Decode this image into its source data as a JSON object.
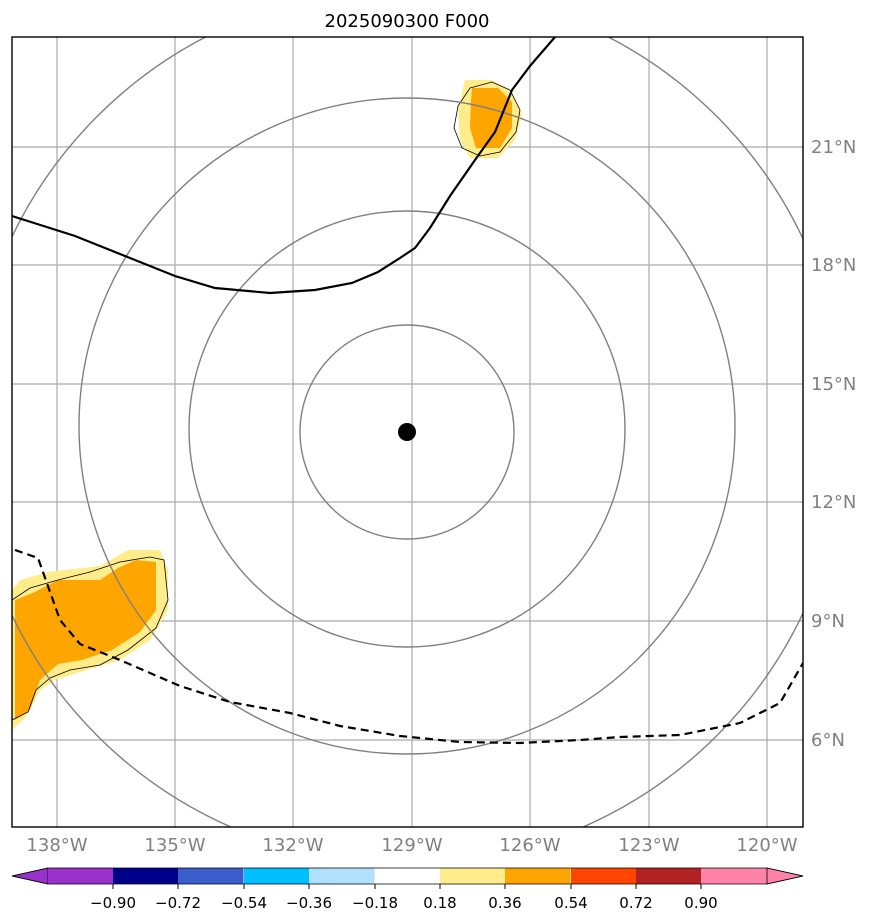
{
  "title": "2025090300 F000",
  "colors": {
    "grid": "#aaaaaa",
    "range_rings": "#808080",
    "tick_label": "#808080",
    "pos_light": "#ffec8b",
    "pos_mid": "#ffa500",
    "storm_center": "#000000"
  },
  "map": {
    "lon_range_deg": [
      -139.5,
      -119.2
    ],
    "lat_range_deg": [
      3.4,
      23.4
    ],
    "storm_center": {
      "lon": -129.0,
      "lat": 13.8
    },
    "lon_ticks": [
      {
        "value": -138,
        "label": "138°W"
      },
      {
        "value": -135,
        "label": "135°W"
      },
      {
        "value": -132,
        "label": "132°W"
      },
      {
        "value": -129,
        "label": "129°W"
      },
      {
        "value": -126,
        "label": "126°W"
      },
      {
        "value": -123,
        "label": "123°W"
      },
      {
        "value": -120,
        "label": "120°W"
      }
    ],
    "lat_ticks": [
      {
        "value": 21,
        "label": "21°N"
      },
      {
        "value": 18,
        "label": "18°N"
      },
      {
        "value": 15,
        "label": "15°N"
      },
      {
        "value": 12,
        "label": "12°N"
      },
      {
        "value": 9,
        "label": "9°N"
      },
      {
        "value": 6,
        "label": "6°N"
      }
    ]
  },
  "colorbar": {
    "ticks": [
      "−0.90",
      "−0.72",
      "−0.54",
      "−0.36",
      "−0.18",
      "0.18",
      "0.36",
      "0.54",
      "0.72",
      "0.90"
    ],
    "colors": [
      "#9932cc",
      "#00008b",
      "#3a5fcd",
      "#00bfff",
      "#b0e2ff",
      "#ffffff",
      "#ffec8b",
      "#ffa500",
      "#ff4500",
      "#b22222",
      "#ff82ab"
    ]
  }
}
